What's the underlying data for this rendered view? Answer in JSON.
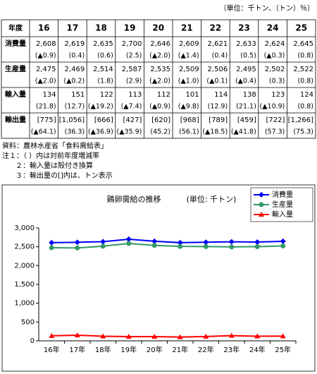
{
  "header": {
    "unit": "（単位：千トン、（トン）％）"
  },
  "table": {
    "corner": "年度",
    "years": [
      "16",
      "17",
      "18",
      "19",
      "20",
      "21",
      "22",
      "23",
      "24",
      "25"
    ],
    "rows": [
      {
        "label": "消費量",
        "values": [
          "2,608",
          "2,619",
          "2,635",
          "2,700",
          "2,646",
          "2,609",
          "2,621",
          "2,633",
          "2,624",
          "2,645"
        ],
        "changes": [
          "(▲0.9)",
          "(0.4)",
          "(0.6)",
          "(2.5)",
          "(▲2.0)",
          "(▲1.4)",
          "(0.4)",
          "(0.5)",
          "(▲0.3)",
          "(0.8)"
        ]
      },
      {
        "label": "生産量",
        "values": [
          "2,475",
          "2,469",
          "2,514",
          "2,587",
          "2,535",
          "2,509",
          "2,506",
          "2,495",
          "2,502",
          "2,522"
        ],
        "changes": [
          "(▲2.0)",
          "(▲0.2)",
          "(1.8)",
          "(2.9)",
          "(▲2.0)",
          "(▲1.0)",
          "(▲0.1)",
          "(▲0.4)",
          "(0.3)",
          "(0.8)"
        ]
      },
      {
        "label": "輸入量",
        "values": [
          "134",
          "151",
          "122",
          "113",
          "112",
          "101",
          "114",
          "138",
          "123",
          "124"
        ],
        "changes": [
          "(21.8)",
          "(12.7)",
          "(▲19.2)",
          "(▲7.4)",
          "(▲0.9)",
          "(▲9.8)",
          "(12.9)",
          "(21.1)",
          "(▲10.9)",
          "(0.8)"
        ]
      },
      {
        "label": "輸出量",
        "values": [
          "[775]",
          "[1,056]",
          "[666]",
          "[427]",
          "[620]",
          "[968]",
          "[789]",
          "[459]",
          "[722]",
          "[1,266]"
        ],
        "changes": [
          "(▲64.1)",
          "(36.3)",
          "(▲36.9)",
          "(▲35.9)",
          "(45.2)",
          "(56.1)",
          "(▲18.5)",
          "(▲41.8)",
          "(57.3)",
          "(75.3)"
        ]
      }
    ]
  },
  "notes": [
    "資料：農林水産省「食料需給表」",
    "注１：（ ）内は対前年度増減率",
    "２：輸入量は殻付き換算",
    "３：輸出量の[]内は、トン表示"
  ],
  "chart_data": {
    "type": "line",
    "title": "鶏卵需給の推移",
    "subtitle": "(単位: 千トン)",
    "categories": [
      "16年",
      "17年",
      "18年",
      "19年",
      "20年",
      "21年",
      "22年",
      "23年",
      "24年",
      "25年"
    ],
    "series": [
      {
        "name": "消費量",
        "color": "#0000ff",
        "marker": "diamond",
        "values": [
          2608,
          2619,
          2635,
          2700,
          2646,
          2609,
          2621,
          2633,
          2624,
          2645
        ]
      },
      {
        "name": "生産量",
        "color": "#339966",
        "marker": "circle",
        "values": [
          2475,
          2469,
          2514,
          2587,
          2535,
          2509,
          2506,
          2495,
          2502,
          2522
        ]
      },
      {
        "name": "輸入量",
        "color": "#ff0000",
        "marker": "triangle",
        "values": [
          134,
          151,
          122,
          113,
          112,
          101,
          114,
          138,
          123,
          124
        ]
      }
    ],
    "ylim": [
      0,
      3000
    ],
    "yticks": [
      0,
      500,
      {
        "value": 1000,
        "label": "1,000"
      },
      {
        "value": 1500,
        "label": "1,500"
      },
      {
        "value": 2000,
        "label": "2,000"
      },
      {
        "value": 2500,
        "label": "2,500"
      },
      {
        "value": 3000,
        "label": "3,000"
      }
    ],
    "legend": "top-right"
  }
}
